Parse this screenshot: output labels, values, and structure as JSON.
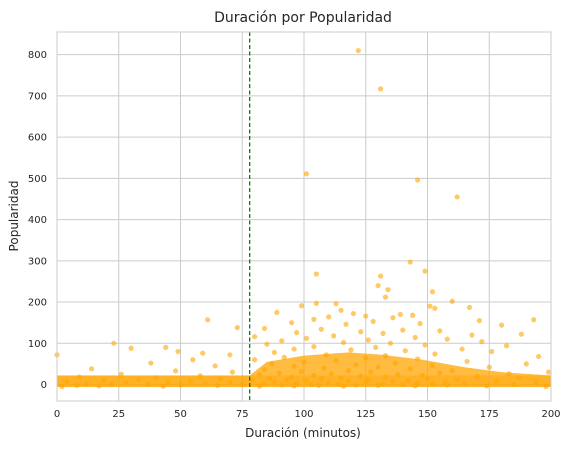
{
  "chart_data": {
    "type": "scatter",
    "title": "Duración por Popularidad",
    "xlabel": "Duración (minutos)",
    "ylabel": "Popularidad",
    "xlim": [
      0,
      200
    ],
    "ylim": [
      -40,
      855
    ],
    "xticks": [
      0,
      25,
      50,
      75,
      100,
      125,
      150,
      175,
      200
    ],
    "yticks": [
      0,
      100,
      200,
      300,
      400,
      500,
      600,
      700,
      800
    ],
    "grid": true,
    "point_color": "#FFA500",
    "reference_line": {
      "x": 78,
      "color": "#008000",
      "style": "dashed"
    },
    "series": [
      {
        "points": [
          [
            122,
            810
          ],
          [
            131,
            717
          ],
          [
            101,
            511
          ],
          [
            146,
            496
          ],
          [
            162,
            455
          ],
          [
            143,
            297
          ],
          [
            149,
            275
          ],
          [
            105,
            268
          ],
          [
            131,
            263
          ],
          [
            130,
            240
          ],
          [
            134,
            230
          ],
          [
            152,
            225
          ],
          [
            133,
            212
          ],
          [
            160,
            202
          ],
          [
            105,
            197
          ],
          [
            99,
            191
          ],
          [
            113,
            196
          ],
          [
            151,
            190
          ],
          [
            167,
            187
          ],
          [
            153,
            185
          ],
          [
            115,
            180
          ],
          [
            89,
            175
          ],
          [
            120,
            172
          ],
          [
            139,
            170
          ],
          [
            144,
            168
          ],
          [
            125,
            166
          ],
          [
            110,
            164
          ],
          [
            136,
            162
          ],
          [
            61,
            157
          ],
          [
            104,
            158
          ],
          [
            193,
            157
          ],
          [
            171,
            155
          ],
          [
            128,
            153
          ],
          [
            95,
            150
          ],
          [
            147,
            148
          ],
          [
            117,
            146
          ],
          [
            180,
            144
          ],
          [
            73,
            138
          ],
          [
            84,
            136
          ],
          [
            107,
            134
          ],
          [
            140,
            132
          ],
          [
            155,
            130
          ],
          [
            123,
            128
          ],
          [
            97,
            126
          ],
          [
            132,
            124
          ],
          [
            188,
            122
          ],
          [
            168,
            120
          ],
          [
            112,
            118
          ],
          [
            80,
            116
          ],
          [
            145,
            114
          ],
          [
            101,
            112
          ],
          [
            158,
            110
          ],
          [
            126,
            108
          ],
          [
            91,
            106
          ],
          [
            172,
            104
          ],
          [
            116,
            102
          ],
          [
            23,
            100
          ],
          [
            135,
            100
          ],
          [
            85,
            98
          ],
          [
            149,
            96
          ],
          [
            182,
            94
          ],
          [
            44,
            90
          ],
          [
            104,
            92
          ],
          [
            129,
            90
          ],
          [
            30,
            88
          ],
          [
            164,
            86
          ],
          [
            96,
            86
          ],
          [
            119,
            84
          ],
          [
            49,
            80
          ],
          [
            141,
            82
          ],
          [
            176,
            80
          ],
          [
            88,
            78
          ],
          [
            59,
            76
          ],
          [
            153,
            74
          ],
          [
            109,
            72
          ],
          [
            70,
            72
          ],
          [
            0,
            72
          ],
          [
            133,
            70
          ],
          [
            195,
            68
          ],
          [
            92,
            66
          ],
          [
            125,
            64
          ],
          [
            146,
            62
          ],
          [
            55,
            60
          ],
          [
            80,
            60
          ],
          [
            113,
            58
          ],
          [
            166,
            56
          ],
          [
            100,
            54
          ],
          [
            38,
            52
          ],
          [
            137,
            52
          ],
          [
            87,
            50
          ],
          [
            190,
            50
          ],
          [
            121,
            48
          ],
          [
            152,
            46
          ],
          [
            64,
            45
          ],
          [
            96,
            44
          ],
          [
            130,
            42
          ],
          [
            175,
            42
          ],
          [
            108,
            40
          ],
          [
            14,
            38
          ],
          [
            143,
            38
          ],
          [
            84,
            36
          ],
          [
            118,
            34
          ],
          [
            160,
            34
          ],
          [
            48,
            33
          ],
          [
            99,
            32
          ],
          [
            199,
            30
          ],
          [
            127,
            30
          ],
          [
            71,
            30
          ],
          [
            155,
            28
          ],
          [
            90,
            28
          ],
          [
            111,
            26
          ],
          [
            183,
            26
          ],
          [
            26,
            25
          ],
          [
            138,
            24
          ],
          [
            82,
            24
          ],
          [
            104,
            22
          ],
          [
            148,
            22
          ],
          [
            58,
            21
          ],
          [
            123,
            20
          ],
          [
            170,
            20
          ],
          [
            95,
            18
          ],
          [
            9,
            18
          ],
          [
            133,
            18
          ],
          [
            115,
            16
          ],
          [
            40,
            16
          ],
          [
            187,
            16
          ],
          [
            86,
            15
          ],
          [
            150,
            14
          ],
          [
            66,
            14
          ],
          [
            107,
            14
          ],
          [
            126,
            12
          ],
          [
            33,
            12
          ],
          [
            162,
            12
          ],
          [
            93,
            11
          ],
          [
            142,
            10
          ],
          [
            19,
            10
          ],
          [
            79,
            10
          ],
          [
            118,
            9
          ],
          [
            54,
            9
          ],
          [
            178,
            8
          ],
          [
            101,
            8
          ],
          [
            136,
            8
          ],
          [
            4,
            7
          ],
          [
            88,
            6
          ],
          [
            157,
            6
          ],
          [
            45,
            6
          ],
          [
            125,
            5
          ],
          [
            194,
            5
          ],
          [
            70,
            5
          ],
          [
            110,
            4
          ],
          [
            146,
            4
          ],
          [
            28,
            4
          ],
          [
            97,
            3
          ],
          [
            165,
            3
          ],
          [
            60,
            3
          ],
          [
            132,
            2
          ],
          [
            84,
            2
          ],
          [
            12,
            2
          ],
          [
            114,
            1
          ],
          [
            152,
            1
          ],
          [
            37,
            1
          ],
          [
            103,
            0
          ],
          [
            140,
            0
          ],
          [
            75,
            0
          ],
          [
            185,
            0
          ],
          [
            22,
            0
          ],
          [
            121,
            -1
          ],
          [
            91,
            -1
          ],
          [
            50,
            -1
          ],
          [
            158,
            -1
          ],
          [
            8,
            -2
          ],
          [
            106,
            -2
          ],
          [
            130,
            -2
          ],
          [
            65,
            -2
          ],
          [
            174,
            -3
          ],
          [
            96,
            -3
          ],
          [
            17,
            -3
          ],
          [
            145,
            -3
          ],
          [
            82,
            -4
          ],
          [
            43,
            -4
          ],
          [
            116,
            -4
          ],
          [
            198,
            -5
          ],
          [
            2,
            -5
          ]
        ]
      }
    ]
  }
}
